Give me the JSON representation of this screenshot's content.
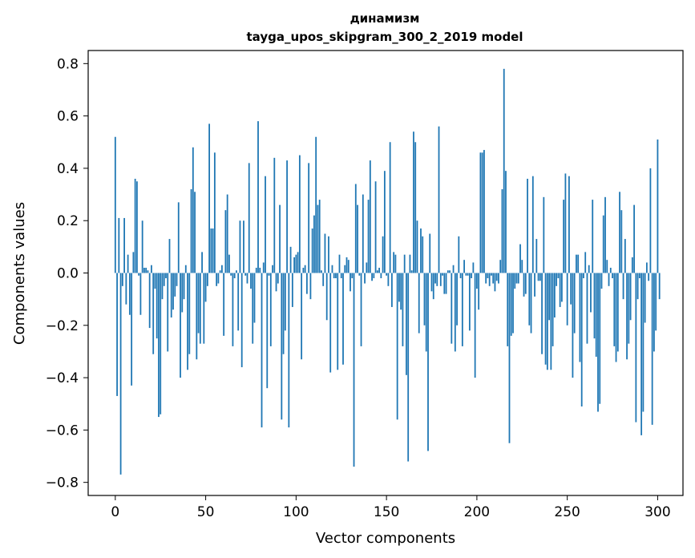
{
  "chart_data": {
    "type": "bar",
    "title": "динамизм",
    "subtitle": "tayga_upos_skipgram_300_2_2019 model",
    "xlabel": "Vector components",
    "ylabel": "Components values",
    "xlim": [
      -15,
      314
    ],
    "ylim": [
      -0.85,
      0.85
    ],
    "xticks": [
      0,
      50,
      100,
      150,
      200,
      250,
      300
    ],
    "xtick_labels": [
      "0",
      "50",
      "100",
      "150",
      "200",
      "250",
      "300"
    ],
    "yticks": [
      0.8,
      0.6,
      0.4,
      0.2,
      0.0,
      -0.2,
      -0.4,
      -0.6,
      -0.8
    ],
    "ytick_labels": [
      "0.8",
      "0.6",
      "0.4",
      "0.2",
      "0.0",
      "−0.2",
      "−0.4",
      "−0.6",
      "−0.8"
    ],
    "bar_color": "#1f77b4",
    "values": [
      0.52,
      -0.47,
      0.21,
      -0.77,
      -0.05,
      0.21,
      -0.12,
      0.07,
      -0.16,
      -0.43,
      0.08,
      0.36,
      0.35,
      -0.01,
      -0.16,
      0.2,
      0.02,
      0.02,
      0.01,
      -0.21,
      0.03,
      -0.31,
      -0.06,
      -0.25,
      -0.55,
      -0.54,
      -0.1,
      -0.05,
      -0.02,
      -0.3,
      0.13,
      -0.17,
      -0.14,
      -0.09,
      -0.05,
      0.27,
      -0.4,
      -0.15,
      -0.1,
      0.03,
      -0.37,
      -0.31,
      0.32,
      0.48,
      0.31,
      -0.33,
      -0.23,
      -0.27,
      0.08,
      -0.27,
      -0.11,
      -0.05,
      0.57,
      0.17,
      0.17,
      0.46,
      -0.05,
      -0.04,
      0.01,
      0.03,
      -0.24,
      0.24,
      0.3,
      0.07,
      -0.01,
      -0.28,
      -0.02,
      0.01,
      -0.22,
      0.2,
      -0.36,
      0.2,
      -0.01,
      -0.04,
      0.42,
      -0.06,
      -0.27,
      -0.19,
      0.02,
      0.58,
      0.02,
      -0.59,
      0.04,
      0.37,
      -0.44,
      -0.01,
      -0.28,
      0.03,
      0.44,
      -0.07,
      -0.04,
      0.26,
      -0.56,
      -0.31,
      -0.22,
      0.43,
      -0.59,
      0.1,
      -0.13,
      0.06,
      0.07,
      0.08,
      0.45,
      -0.33,
      0.02,
      0.03,
      -0.08,
      0.42,
      -0.1,
      0.17,
      0.22,
      0.52,
      0.26,
      0.28,
      0.01,
      -0.05,
      0.15,
      -0.18,
      0.14,
      -0.38,
      0.03,
      -0.02,
      -0.02,
      -0.37,
      0.07,
      -0.02,
      -0.35,
      0.03,
      0.06,
      0.05,
      -0.07,
      -0.02,
      -0.74,
      0.34,
      0.26,
      -0.01,
      -0.28,
      0.3,
      -0.04,
      0.04,
      0.28,
      0.43,
      -0.03,
      -0.02,
      0.35,
      0.01,
      0.02,
      -0.02,
      0.14,
      0.39,
      -0.01,
      -0.05,
      0.5,
      -0.13,
      0.08,
      0.07,
      -0.56,
      -0.11,
      -0.14,
      -0.28,
      0.07,
      -0.39,
      -0.72,
      0.07,
      0.01,
      0.54,
      0.5,
      0.2,
      -0.23,
      0.17,
      0.14,
      -0.2,
      -0.3,
      -0.68,
      0.15,
      -0.07,
      -0.1,
      -0.04,
      -0.05,
      0.56,
      -0.05,
      -0.01,
      -0.08,
      -0.08,
      0.01,
      0.01,
      -0.27,
      0.03,
      -0.3,
      -0.2,
      0.14,
      -0.02,
      -0.28,
      0.05,
      -0.01,
      -0.01,
      -0.22,
      -0.02,
      0.04,
      -0.4,
      -0.06,
      -0.14,
      0.46,
      0.46,
      0.47,
      -0.04,
      -0.02,
      -0.05,
      -0.01,
      -0.04,
      -0.07,
      -0.03,
      -0.04,
      0.05,
      0.32,
      0.78,
      0.39,
      -0.28,
      -0.65,
      -0.24,
      -0.23,
      -0.06,
      -0.04,
      -0.04,
      0.11,
      0.05,
      -0.09,
      -0.08,
      0.36,
      -0.2,
      -0.23,
      0.37,
      -0.09,
      0.13,
      -0.03,
      -0.03,
      -0.31,
      0.29,
      -0.35,
      -0.37,
      -0.18,
      -0.37,
      -0.28,
      -0.17,
      -0.05,
      -0.02,
      -0.13,
      -0.11,
      0.28,
      0.38,
      -0.2,
      0.37,
      -0.12,
      -0.4,
      -0.23,
      0.07,
      0.07,
      -0.34,
      -0.51,
      -0.02,
      0.08,
      -0.27,
      0.03,
      -0.15,
      0.28,
      -0.25,
      -0.32,
      -0.53,
      -0.5,
      -0.06,
      0.22,
      0.29,
      0.05,
      -0.05,
      0.02,
      -0.02,
      -0.28,
      -0.34,
      -0.3,
      0.31,
      0.24,
      -0.1,
      0.13,
      -0.33,
      -0.27,
      -0.18,
      0.06,
      0.26,
      -0.57,
      -0.1,
      -0.02,
      -0.62,
      -0.53,
      -0.19,
      0.04,
      -0.03,
      0.4,
      -0.58,
      -0.3,
      -0.22,
      0.51,
      -0.1
    ]
  }
}
